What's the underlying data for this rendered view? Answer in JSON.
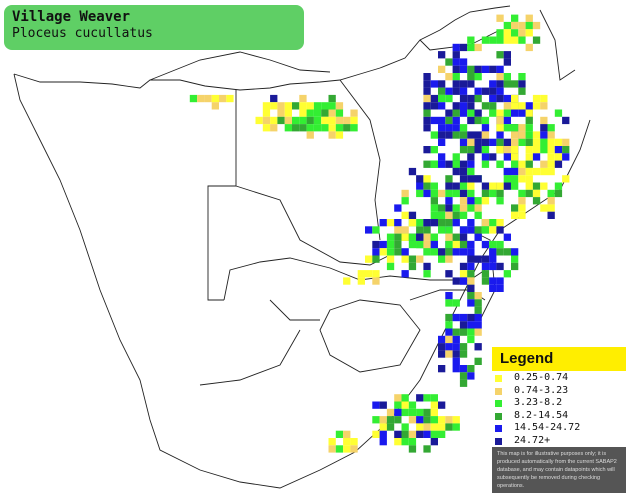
{
  "title": {
    "common_name": "Village Weaver",
    "scientific_name": "Ploceus cucullatus"
  },
  "legend": {
    "title": "Legend",
    "items": [
      {
        "label": "0.25-0.74",
        "color": "#ffff33"
      },
      {
        "label": "0.74-3.23",
        "color": "#f5d36a"
      },
      {
        "label": "3.23-8.2",
        "color": "#33ee33"
      },
      {
        "label": "8.2-14.54",
        "color": "#33a833"
      },
      {
        "label": "14.54-24.72",
        "color": "#1a1aee"
      },
      {
        "label": "24.72+",
        "color": "#1a1a99"
      }
    ],
    "disclaimer": "This map is for illustrative purposes only; it is produced automatically from the current SABAP2 database, and may contain datapoints which will subsequently be removed during checking operations."
  },
  "colors": {
    "title_bg": "#5fcf65",
    "legend_header_bg": "#ffee00",
    "disclaimer_bg": "#555555",
    "border_line": "#222222"
  }
}
